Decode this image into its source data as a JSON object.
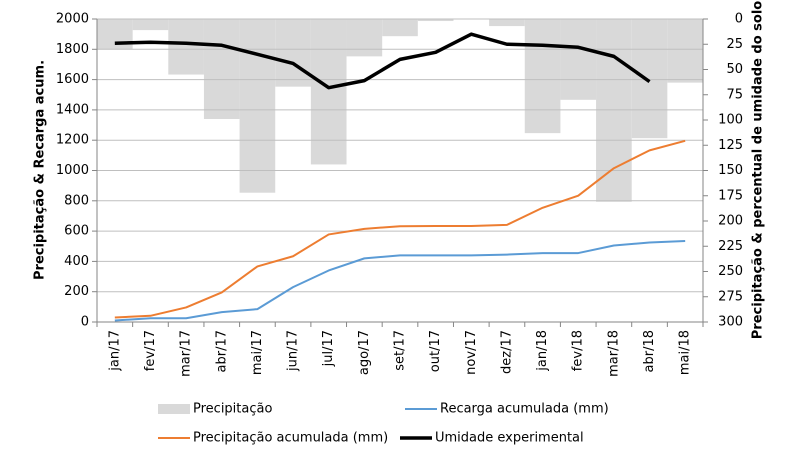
{
  "chart_data": {
    "type": "combo",
    "y_label": "Precipitação & Recarga acum.",
    "y2_label": "Precipitação & percentual de umidade do solo",
    "categories": [
      "jan/17",
      "fev/17",
      "mar/17",
      "abr/17",
      "mai/17",
      "jun/17",
      "jul/17",
      "ago/17",
      "set/17",
      "out/17",
      "nov/17",
      "dez/17",
      "jan/18",
      "fev/18",
      "mar/18",
      "abr/18",
      "mai/18"
    ],
    "ylim": [
      0,
      2000
    ],
    "yticks": [
      0,
      200,
      400,
      600,
      800,
      1000,
      1200,
      1400,
      1600,
      1800,
      2000
    ],
    "y2lim": [
      0,
      300
    ],
    "y2_inverted": true,
    "y2ticks": [
      0,
      25,
      50,
      75,
      100,
      125,
      150,
      175,
      200,
      225,
      250,
      275,
      300
    ],
    "grid": true,
    "legend": "bottom",
    "series": [
      {
        "name": "Precipitação",
        "type": "bar",
        "axis": "y2",
        "color": "#d9d9d9",
        "values": [
          30,
          11,
          55,
          99,
          172,
          67,
          144,
          37,
          17,
          2,
          0,
          7,
          113,
          80,
          181,
          118,
          63
        ]
      },
      {
        "name": "Recarga acumulada (mm)",
        "type": "line",
        "axis": "y",
        "color": "#5b9bd5",
        "values": [
          10,
          25,
          25,
          65,
          85,
          230,
          340,
          420,
          440,
          440,
          440,
          445,
          455,
          455,
          505,
          525,
          535
        ]
      },
      {
        "name": "Precipitação acumulada (mm)",
        "type": "line",
        "axis": "y",
        "color": "#ed7d31",
        "values": [
          30,
          41,
          96,
          195,
          367,
          434,
          578,
          615,
          632,
          634,
          634,
          641,
          754,
          834,
          1015,
          1133,
          1196
        ]
      },
      {
        "name": "Umidade experimental",
        "type": "line",
        "axis": "y2",
        "color": "#000000",
        "values": [
          24,
          23,
          24,
          26,
          35,
          44,
          68,
          61,
          40,
          33,
          15,
          25,
          26,
          28,
          37,
          62,
          null
        ]
      }
    ]
  }
}
